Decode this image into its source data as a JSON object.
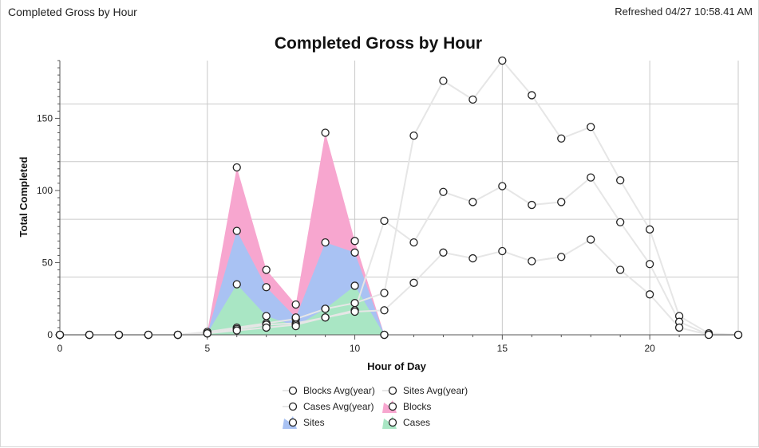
{
  "header": {
    "title": "Completed Gross by Hour",
    "refreshed": "Refreshed 04/27 10:58.41 AM"
  },
  "chart_data": {
    "type": "area",
    "title": "Completed Gross by Hour",
    "xlabel": "Hour of Day",
    "ylabel": "Total Completed",
    "xlim": [
      0,
      23
    ],
    "ylim": [
      0,
      190
    ],
    "xticks": [
      0,
      5,
      10,
      15,
      20
    ],
    "yticks": [
      0,
      50,
      100,
      150
    ],
    "grid": true,
    "legend_position": "bottom",
    "legend": [
      {
        "name": "Blocks Avg(year)",
        "swatch": "line"
      },
      {
        "name": "Sites Avg(year)",
        "swatch": "line"
      },
      {
        "name": "Cases Avg(year)",
        "swatch": "line"
      },
      {
        "name": "Blocks",
        "swatch": "area",
        "color": "#f7a6cf"
      },
      {
        "name": "Sites",
        "swatch": "area",
        "color": "#a9c2f3"
      },
      {
        "name": "Cases",
        "swatch": "area",
        "color": "#a9e6c4"
      }
    ],
    "x": [
      0,
      1,
      2,
      3,
      4,
      5,
      6,
      7,
      8,
      9,
      10,
      11,
      12,
      13,
      14,
      15,
      16,
      17,
      18,
      19,
      20,
      21,
      22,
      23
    ],
    "series": [
      {
        "name": "Blocks Avg(year)",
        "kind": "line",
        "color": "#e6e6e6",
        "values": [
          0,
          0,
          0,
          0,
          0,
          2,
          5,
          8,
          11,
          18,
          22,
          29,
          138,
          176,
          163,
          190,
          166,
          136,
          144,
          107,
          73,
          13,
          1,
          0
        ]
      },
      {
        "name": "Sites Avg(year)",
        "kind": "line",
        "color": "#e6e6e6",
        "values": [
          0,
          0,
          0,
          0,
          0,
          1,
          4,
          7,
          8,
          12,
          17,
          79,
          64,
          99,
          92,
          103,
          90,
          92,
          109,
          78,
          49,
          9,
          0,
          0
        ]
      },
      {
        "name": "Cases Avg(year)",
        "kind": "line",
        "color": "#e6e6e6",
        "values": [
          0,
          0,
          0,
          0,
          0,
          1,
          3,
          5,
          7,
          12,
          16,
          17,
          36,
          57,
          53,
          58,
          51,
          54,
          66,
          45,
          28,
          5,
          0,
          0
        ]
      },
      {
        "name": "Blocks",
        "kind": "area",
        "color": "#f7a6cf",
        "values": [
          0,
          0,
          0,
          0,
          0,
          2,
          116,
          45,
          21,
          140,
          65,
          0,
          null,
          null,
          null,
          null,
          null,
          null,
          null,
          null,
          null,
          null,
          null,
          null
        ]
      },
      {
        "name": "Sites",
        "kind": "area",
        "color": "#a9c2f3",
        "values": [
          0,
          0,
          0,
          0,
          0,
          1,
          72,
          33,
          12,
          64,
          57,
          0,
          null,
          null,
          null,
          null,
          null,
          null,
          null,
          null,
          null,
          null,
          null,
          null
        ]
      },
      {
        "name": "Cases",
        "kind": "area",
        "color": "#a9e6c4",
        "values": [
          0,
          0,
          0,
          0,
          0,
          1,
          35,
          13,
          6,
          18,
          34,
          0,
          null,
          null,
          null,
          null,
          null,
          null,
          null,
          null,
          null,
          null,
          null,
          null
        ]
      }
    ]
  }
}
